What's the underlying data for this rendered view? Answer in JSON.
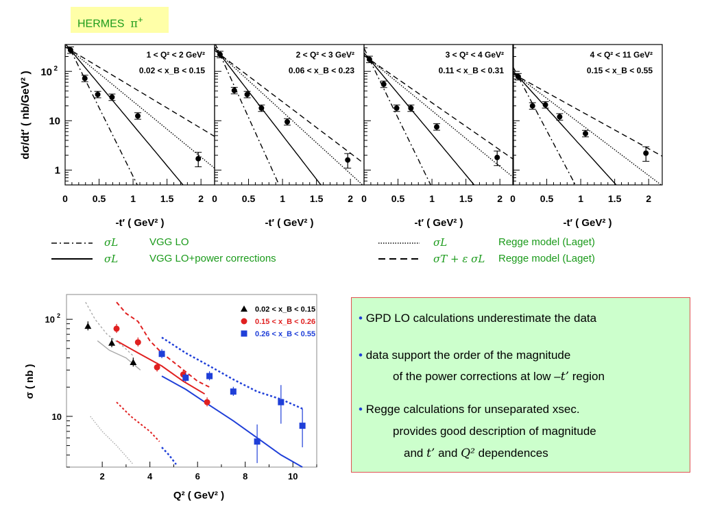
{
  "header": {
    "label": "HERMES",
    "particle": "π",
    "charge": "+"
  },
  "chart_data": [
    {
      "type": "scatter",
      "panels": [
        {
          "q2_label": "1 < Q² < 2 GeV²",
          "xb_label": "0.02 < x_B < 0.15",
          "points": [
            {
              "x": 0.08,
              "y": 270
            },
            {
              "x": 0.29,
              "y": 72
            },
            {
              "x": 0.48,
              "y": 34
            },
            {
              "x": 0.69,
              "y": 30
            },
            {
              "x": 1.07,
              "y": 12.5
            },
            {
              "x": 1.96,
              "y": 1.7
            }
          ]
        },
        {
          "q2_label": "2 < Q² < 3 GeV²",
          "xb_label": "0.06 < x_B < 0.23",
          "points": [
            {
              "x": 0.08,
              "y": 220
            },
            {
              "x": 0.29,
              "y": 41
            },
            {
              "x": 0.48,
              "y": 34
            },
            {
              "x": 0.69,
              "y": 18
            },
            {
              "x": 1.07,
              "y": 9.5
            },
            {
              "x": 1.96,
              "y": 1.6
            }
          ]
        },
        {
          "q2_label": "3 < Q² < 4 GeV²",
          "xb_label": "0.11 < x_B < 0.31",
          "points": [
            {
              "x": 0.08,
              "y": 175
            },
            {
              "x": 0.29,
              "y": 55
            },
            {
              "x": 0.48,
              "y": 18
            },
            {
              "x": 0.69,
              "y": 18
            },
            {
              "x": 1.07,
              "y": 7.5
            },
            {
              "x": 1.96,
              "y": 1.8
            }
          ]
        },
        {
          "q2_label": "4 < Q² < 11 GeV²",
          "xb_label": "0.15 < x_B < 0.55",
          "points": [
            {
              "x": 0.08,
              "y": 78
            },
            {
              "x": 0.29,
              "y": 20
            },
            {
              "x": 0.48,
              "y": 21
            },
            {
              "x": 0.69,
              "y": 12
            },
            {
              "x": 1.07,
              "y": 5.5
            },
            {
              "x": 1.96,
              "y": 2.2
            }
          ]
        }
      ],
      "x_ticks": [
        "0",
        "0.5",
        "1",
        "1.5",
        "2"
      ],
      "y_ticks": [
        "1",
        "10",
        "10 2"
      ],
      "xlabel": "-t′ ( GeV² )",
      "ylabel": "dσ/dt′ ( nb/GeV² )",
      "xlim": [
        0,
        2.2
      ],
      "ylim": [
        0.5,
        350
      ],
      "log_y": true
    },
    {
      "type": "scatter",
      "series": [
        {
          "name": "0.02 < x_B < 0.15",
          "color": "#000000",
          "marker": "triangle",
          "points": [
            {
              "x": 1.4,
              "y": 85
            },
            {
              "x": 2.4,
              "y": 57
            },
            {
              "x": 3.3,
              "y": 36
            }
          ]
        },
        {
          "name": "0.15 < x_B < 0.26",
          "color": "#e02020",
          "marker": "circle",
          "points": [
            {
              "x": 2.6,
              "y": 80
            },
            {
              "x": 3.5,
              "y": 58
            },
            {
              "x": 4.3,
              "y": 32
            },
            {
              "x": 5.4,
              "y": 27
            },
            {
              "x": 6.4,
              "y": 14
            }
          ]
        },
        {
          "name": "0.26 < x_B < 0.55",
          "color": "#1f3fd8",
          "marker": "square",
          "points": [
            {
              "x": 4.5,
              "y": 44
            },
            {
              "x": 5.5,
              "y": 25
            },
            {
              "x": 6.5,
              "y": 26
            },
            {
              "x": 7.5,
              "y": 18
            },
            {
              "x": 8.5,
              "y": 5.5
            },
            {
              "x": 9.5,
              "y": 14
            },
            {
              "x": 10.4,
              "y": 8
            }
          ]
        }
      ],
      "x_ticks": [
        "2",
        "4",
        "6",
        "8",
        "10"
      ],
      "y_ticks": [
        "10",
        "10 2"
      ],
      "xlabel": "Q² ( GeV² )",
      "ylabel": "σ ( nb )",
      "xlim": [
        0.5,
        11
      ],
      "ylim": [
        3,
        180
      ],
      "log_y": true
    }
  ],
  "legend": [
    {
      "sym": "σL",
      "model": "VGG LO",
      "style": "dash-dot"
    },
    {
      "sym": "σL",
      "model": "VGG LO+power corrections",
      "style": "solid"
    },
    {
      "sym": "σL",
      "model": "Regge model (Laget)",
      "style": "dotted"
    },
    {
      "sym": "σT + ε σL",
      "model": "Regge model (Laget)",
      "style": "dashed"
    }
  ],
  "notes": {
    "bullet1": "GPD LO calculations underestimate the data",
    "bullet2a": "data support the order of the magnitude",
    "bullet2b_pre": "of the power corrections  at low –",
    "bullet2b_t": "t’",
    "bullet2b_post": " region",
    "bullet3a": "Regge calculations for unseparated  xsec.",
    "bullet3b": "provides  good description of magnitude",
    "bullet3c_pre": "and ",
    "bullet3c_t": "t’",
    "bullet3c_mid": " and ",
    "bullet3c_q": "Q²",
    "bullet3c_post": " dependences"
  }
}
